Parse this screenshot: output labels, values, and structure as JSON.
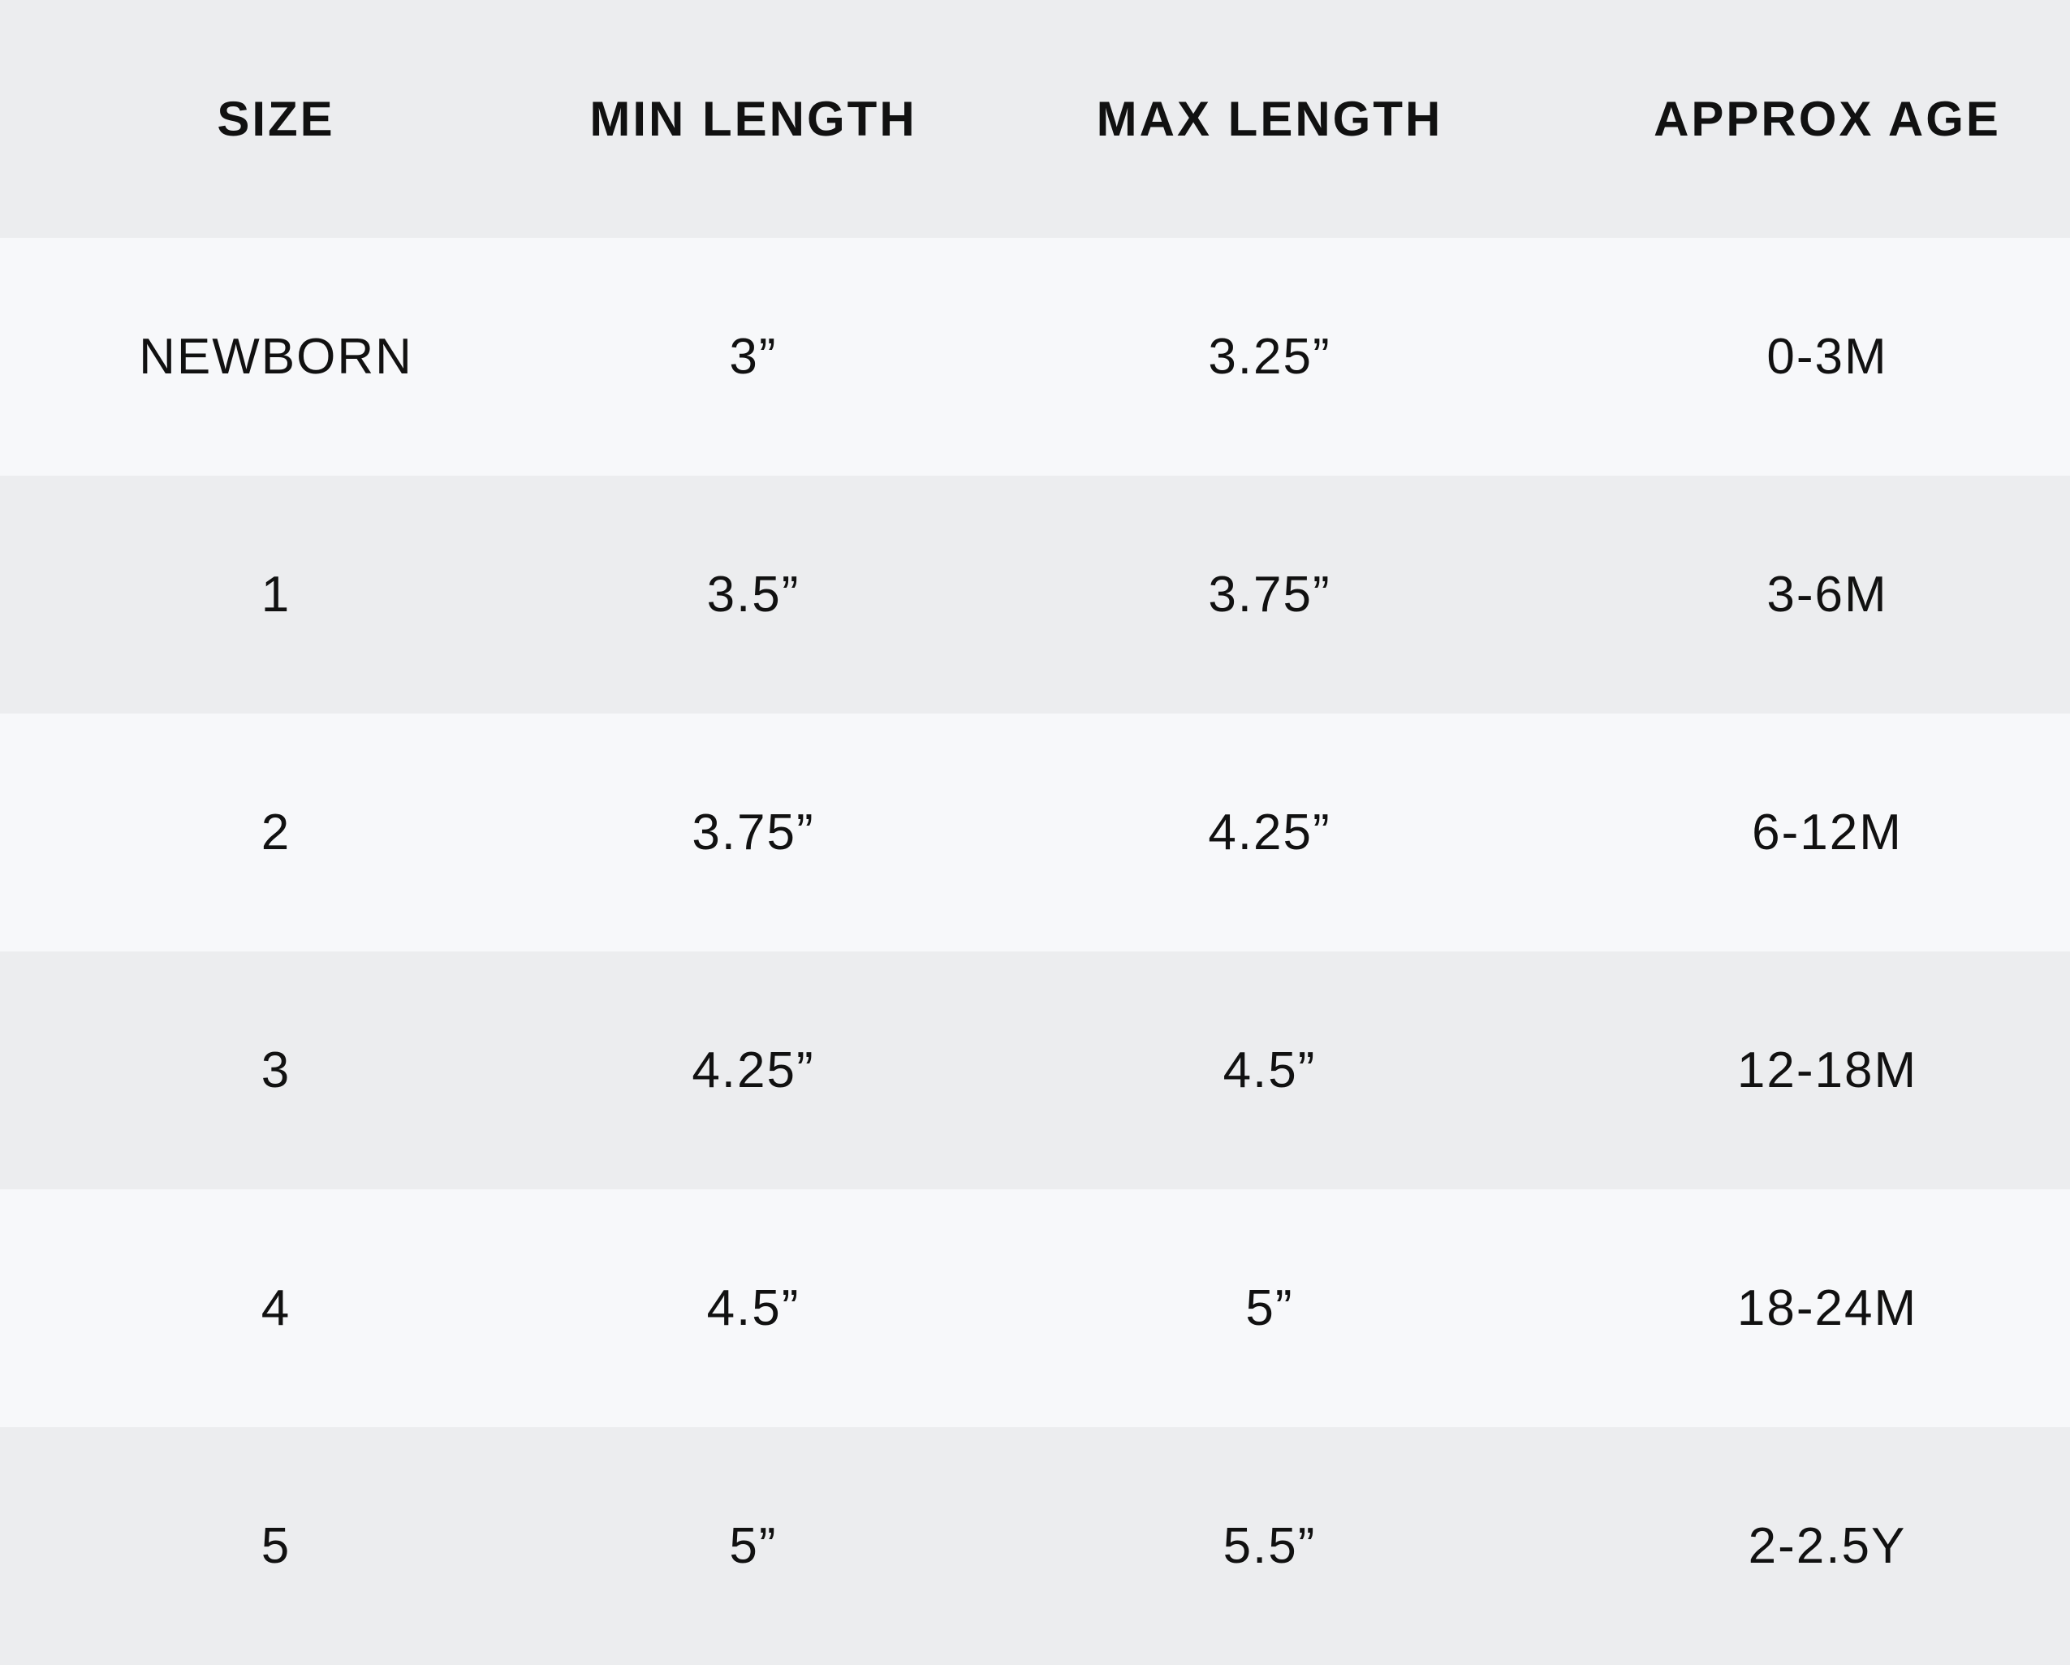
{
  "colors": {
    "header_bg": "#ecedef",
    "row_light": "#f7f8fa",
    "row_dark": "#ecedef",
    "text": "#111111"
  },
  "table": {
    "headers": [
      "SIZE",
      "MIN LENGTH",
      "MAX LENGTH",
      "APPROX AGE"
    ],
    "rows": [
      [
        "NEWBORN",
        "3”",
        "3.25”",
        "0-3M"
      ],
      [
        "1",
        "3.5”",
        "3.75”",
        "3-6M"
      ],
      [
        "2",
        "3.75”",
        "4.25”",
        "6-12M"
      ],
      [
        "3",
        "4.25”",
        "4.5”",
        "12-18M"
      ],
      [
        "4",
        "4.5”",
        "5”",
        "18-24M"
      ],
      [
        "5",
        "5”",
        "5.5”",
        "2-2.5Y"
      ]
    ]
  }
}
